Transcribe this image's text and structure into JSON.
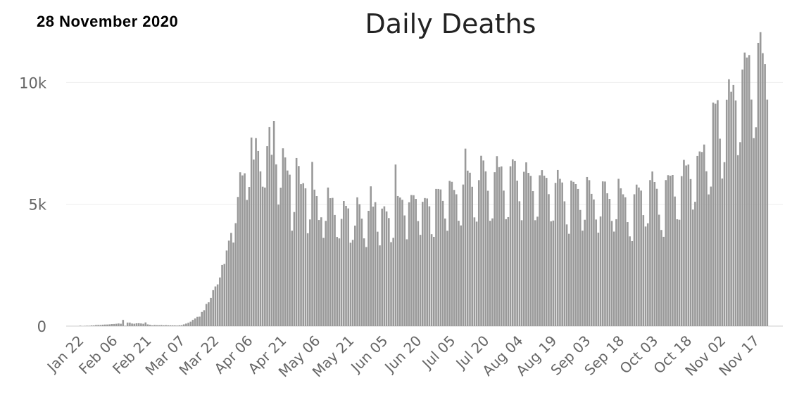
{
  "header": {
    "date": "28  November  2020",
    "title": "Daily Deaths"
  },
  "chart_data": {
    "type": "bar",
    "title": "Daily Deaths",
    "bar_color": "#999999",
    "grid": true,
    "x_start": "2020-01-22",
    "ylim": [
      0,
      12000
    ],
    "y_ticks": [
      0,
      5000,
      10000
    ],
    "y_tick_labels": [
      "0",
      "5k",
      "10k"
    ],
    "x_tick_labels": [
      "Jan 22",
      "Feb 06",
      "Feb 21",
      "Mar 07",
      "Mar 22",
      "Apr 06",
      "Apr 21",
      "May 06",
      "May 21",
      "Jun 05",
      "Jun 20",
      "Jul 05",
      "Jul 20",
      "Aug 04",
      "Aug 19",
      "Sep 03",
      "Sep 18",
      "Oct 03",
      "Oct 18",
      "Nov 02",
      "Nov 17"
    ],
    "values": [
      17,
      0,
      8,
      16,
      14,
      26,
      26,
      43,
      46,
      45,
      57,
      64,
      66,
      73,
      86,
      89,
      97,
      108,
      97,
      254,
      13,
      143,
      142,
      106,
      98,
      115,
      118,
      109,
      97,
      150,
      71,
      52,
      29,
      44,
      37,
      35,
      42,
      31,
      38,
      31,
      30,
      28,
      27,
      22,
      31,
      36,
      72,
      103,
      134,
      183,
      255,
      312,
      382,
      389,
      583,
      653,
      910,
      977,
      1157,
      1476,
      1628,
      1712,
      1996,
      2512,
      2550,
      3103,
      3508,
      3825,
      3428,
      4226,
      5301,
      6312,
      6185,
      6272,
      5178,
      5710,
      7740,
      6837,
      7719,
      7186,
      6352,
      5721,
      5687,
      7384,
      8166,
      7033,
      8423,
      6638,
      4987,
      5682,
      7297,
      6923,
      6386,
      6214,
      3915,
      4682,
      6896,
      6570,
      5825,
      5867,
      5656,
      3811,
      4377,
      6740,
      5601,
      5336,
      4354,
      4465,
      3620,
      4320,
      5688,
      5250,
      5262,
      4561,
      3661,
      3600,
      4400,
      5134,
      4934,
      4830,
      3421,
      3540,
      4125,
      5286,
      5004,
      4411,
      3601,
      3244,
      4732,
      5736,
      4906,
      5087,
      3875,
      3313,
      4822,
      4915,
      4707,
      4434,
      3446,
      3621,
      6632,
      5338,
      5278,
      5184,
      4542,
      3563,
      5081,
      5380,
      5372,
      5220,
      4312,
      3745,
      5102,
      5255,
      5238,
      4917,
      3774,
      3664,
      5628,
      5627,
      5608,
      5138,
      4416,
      3912,
      5961,
      5921,
      5589,
      5410,
      4324,
      4132,
      5810,
      7282,
      6381,
      6295,
      5718,
      4462,
      4288,
      5991,
      6990,
      6797,
      6352,
      5555,
      4322,
      4421,
      6315,
      6974,
      6526,
      6555,
      5562,
      4388,
      4472,
      6561,
      6848,
      6782,
      5970,
      5124,
      4345,
      6334,
      6721,
      6288,
      6167,
      5538,
      4345,
      4491,
      6189,
      6401,
      6175,
      6083,
      5415,
      4300,
      4332,
      5879,
      6406,
      6045,
      5894,
      5121,
      4173,
      3789,
      5972,
      5919,
      5827,
      5627,
      4766,
      3917,
      4364,
      6117,
      5990,
      5426,
      5198,
      4374,
      3836,
      4500,
      5940,
      5933,
      5451,
      5221,
      4317,
      3879,
      4386,
      6045,
      5656,
      5409,
      5288,
      4268,
      3683,
      3491,
      5410,
      5807,
      5689,
      5563,
      4555,
      4087,
      4221,
      5992,
      6347,
      5914,
      5634,
      4572,
      3946,
      3666,
      5993,
      6195,
      6171,
      6202,
      5318,
      4385,
      4365,
      6156,
      6822,
      6592,
      6631,
      6034,
      4783,
      5103,
      6983,
      7168,
      7147,
      7452,
      6356,
      5405,
      5725,
      9176,
      9127,
      9275,
      7692,
      6057,
      6729,
      9294,
      10131,
      9617,
      9897,
      9261,
      7015,
      7549,
      10531,
      11228,
      11024,
      11125,
      9299,
      7718,
      8158,
      11626,
      12064,
      11202,
      10757,
      9298
    ]
  }
}
